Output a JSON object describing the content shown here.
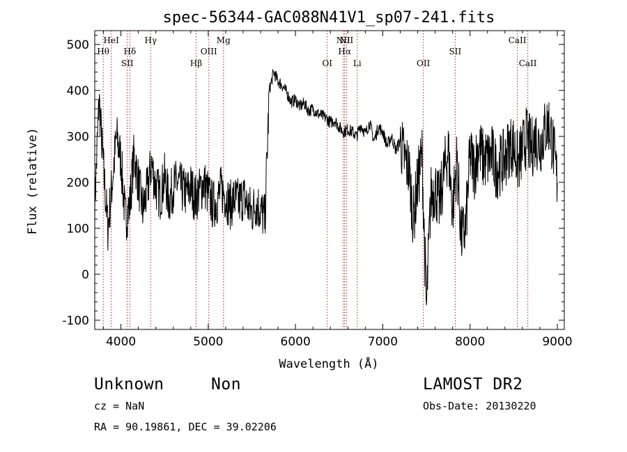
{
  "chart_data": {
    "type": "line",
    "title": "spec-56344-GAC088N41V1_sp07-241.fits",
    "xlabel": "Wavelength (Å)",
    "ylabel": "Flux (relative)",
    "xlim": [
      3700,
      9080
    ],
    "ylim": [
      -120,
      530
    ],
    "x_ticks": [
      4000,
      5000,
      6000,
      7000,
      8000,
      9000
    ],
    "y_ticks": [
      -100,
      0,
      100,
      200,
      300,
      400,
      500
    ],
    "grid": false,
    "series": [
      {
        "x": [
          3700,
          3750,
          3800,
          3850,
          3900,
          3950,
          4000,
          4050,
          4100,
          4150,
          4200,
          4250,
          4300,
          4350,
          4400,
          4450,
          4500,
          4550,
          4600,
          4650,
          4700,
          4750,
          4800,
          4850,
          4900,
          4950,
          5000,
          5050,
          5100,
          5150,
          5200,
          5250,
          5300,
          5350,
          5400,
          5450,
          5500,
          5550,
          5600,
          5650,
          5700,
          5750,
          5800,
          5850,
          5900,
          5950,
          6000,
          6050,
          6100,
          6150,
          6200,
          6250,
          6300,
          6350,
          6400,
          6450,
          6500,
          6550,
          6600,
          6650,
          6700,
          6750,
          6800,
          6850,
          6900,
          6950,
          7000,
          7050,
          7100,
          7150,
          7200,
          7250,
          7300,
          7350,
          7400,
          7450,
          7500,
          7550,
          7600,
          7650,
          7700,
          7750,
          7800,
          7850,
          7900,
          7950,
          8000,
          8050,
          8100,
          8150,
          8200,
          8250,
          8300,
          8350,
          8400,
          8450,
          8500,
          8550,
          8600,
          8650,
          8700,
          8750,
          8800,
          8850,
          8900,
          8950,
          9000
        ],
        "y": [
          150,
          380,
          230,
          100,
          200,
          300,
          250,
          120,
          150,
          260,
          200,
          140,
          180,
          240,
          190,
          170,
          210,
          160,
          190,
          200,
          185,
          175,
          190,
          165,
          180,
          200,
          175,
          150,
          160,
          185,
          170,
          150,
          165,
          155,
          170,
          150,
          135,
          155,
          140,
          120,
          400,
          440,
          420,
          410,
          395,
          375,
          380,
          365,
          372,
          355,
          360,
          350,
          345,
          340,
          330,
          335,
          320,
          310,
          315,
          310,
          300,
          325,
          305,
          330,
          290,
          320,
          310,
          280,
          300,
          270,
          290,
          250,
          230,
          120,
          200,
          260,
          -80,
          170,
          190,
          150,
          220,
          270,
          140,
          250,
          80,
          100,
          260,
          230,
          280,
          250,
          250,
          260,
          230,
          240,
          250,
          280,
          280,
          240,
          270,
          300,
          270,
          300,
          280,
          310,
          330,
          280,
          200
        ]
      }
    ],
    "line_markers": [
      {
        "label": "Hθ",
        "x": 3797,
        "row": 2
      },
      {
        "label": "HeI",
        "x": 3889,
        "row": 1
      },
      {
        "label": "SII",
        "x": 4072,
        "row": 3
      },
      {
        "label": "Hδ",
        "x": 4102,
        "row": 2
      },
      {
        "label": "Hγ",
        "x": 4341,
        "row": 1
      },
      {
        "label": "Hβ",
        "x": 4861,
        "row": 3
      },
      {
        "label": "OIII",
        "x": 5007,
        "row": 2
      },
      {
        "label": "Mg",
        "x": 5175,
        "row": 1
      },
      {
        "label": "OI",
        "x": 6364,
        "row": 3
      },
      {
        "label": "NII",
        "x": 6548,
        "row": 1
      },
      {
        "label": "Hα",
        "x": 6563,
        "row": 2
      },
      {
        "label": "NII",
        "x": 6584,
        "row": 1
      },
      {
        "label": "Li",
        "x": 6708,
        "row": 3
      },
      {
        "label": "OII",
        "x": 7465,
        "row": 3
      },
      {
        "label": "SII",
        "x": 7830,
        "row": 2
      },
      {
        "label": "CaII",
        "x": 8542,
        "row": 1
      },
      {
        "label": "CaII",
        "x": 8662,
        "row": 3
      }
    ]
  },
  "info": {
    "object_class": "Unknown",
    "subclass": "Non",
    "survey": "LAMOST DR2",
    "cz": "cz = NaN",
    "obs_date": "Obs-Date: 20130220",
    "coords": "RA =  90.19861, DEC =  39.02206"
  }
}
